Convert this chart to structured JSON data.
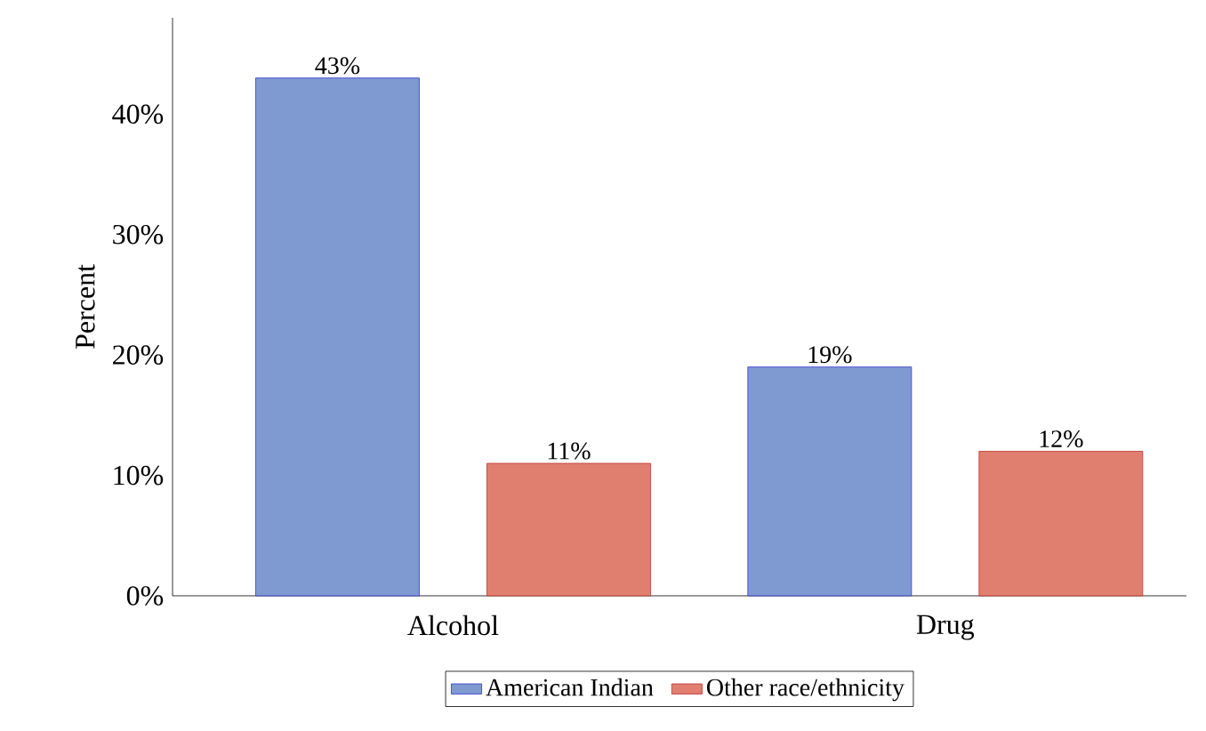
{
  "chart_data": {
    "type": "bar",
    "ylabel": "Percent",
    "categories": [
      "Alcohol",
      "Drug"
    ],
    "series": [
      {
        "name": "American Indian",
        "color": "#7f9ad0",
        "values": [
          43,
          19
        ],
        "value_labels": [
          "43%",
          "19%"
        ]
      },
      {
        "name": "Other race/ethnicity",
        "color": "#e07f6f",
        "values": [
          11,
          12
        ],
        "value_labels": [
          "11%",
          "12%"
        ]
      }
    ],
    "ylim": [
      0,
      48
    ],
    "yticks": [
      {
        "value": 0,
        "label": "0%"
      },
      {
        "value": 10,
        "label": "10%"
      },
      {
        "value": 20,
        "label": "20%"
      },
      {
        "value": 30,
        "label": "30%"
      },
      {
        "value": 40,
        "label": "40%"
      }
    ],
    "grid": false,
    "legend": "bottom"
  }
}
